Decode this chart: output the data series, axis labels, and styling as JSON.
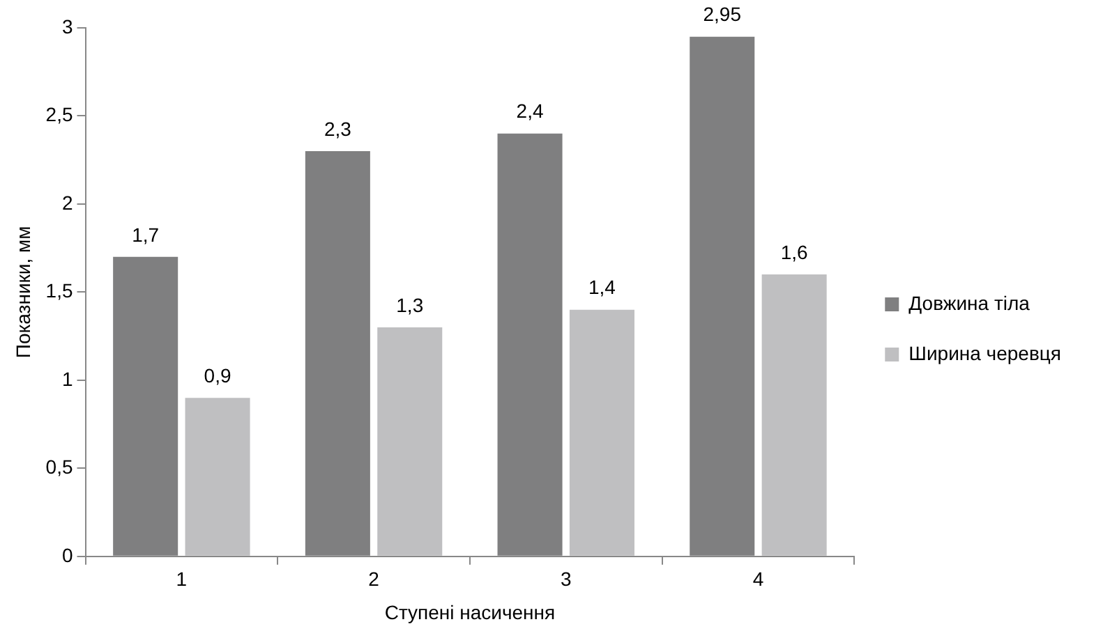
{
  "chart_data": {
    "type": "bar",
    "xlabel": "Ступені насичення",
    "ylabel": "Показники, мм",
    "categories": [
      "1",
      "2",
      "3",
      "4"
    ],
    "series": [
      {
        "name": "Довжина тіла",
        "color": "#7f7f80",
        "values": [
          1.7,
          2.3,
          2.4,
          2.95
        ],
        "value_labels": [
          "1,7",
          "2,3",
          "2,4",
          "2,95"
        ]
      },
      {
        "name": "Ширина черевця",
        "color": "#bfbfc1",
        "values": [
          0.9,
          1.3,
          1.4,
          1.6
        ],
        "value_labels": [
          "0,9",
          "1,3",
          "1,4",
          "1,6"
        ]
      }
    ],
    "ylim": [
      0,
      3
    ],
    "yticks": [
      0,
      {
        "value": 0.5,
        "label": "0,5"
      },
      1,
      {
        "value": 1.5,
        "label": "1,5"
      },
      2,
      {
        "value": 2.5,
        "label": "2,5"
      },
      3
    ],
    "grid": false,
    "legend": "right"
  }
}
